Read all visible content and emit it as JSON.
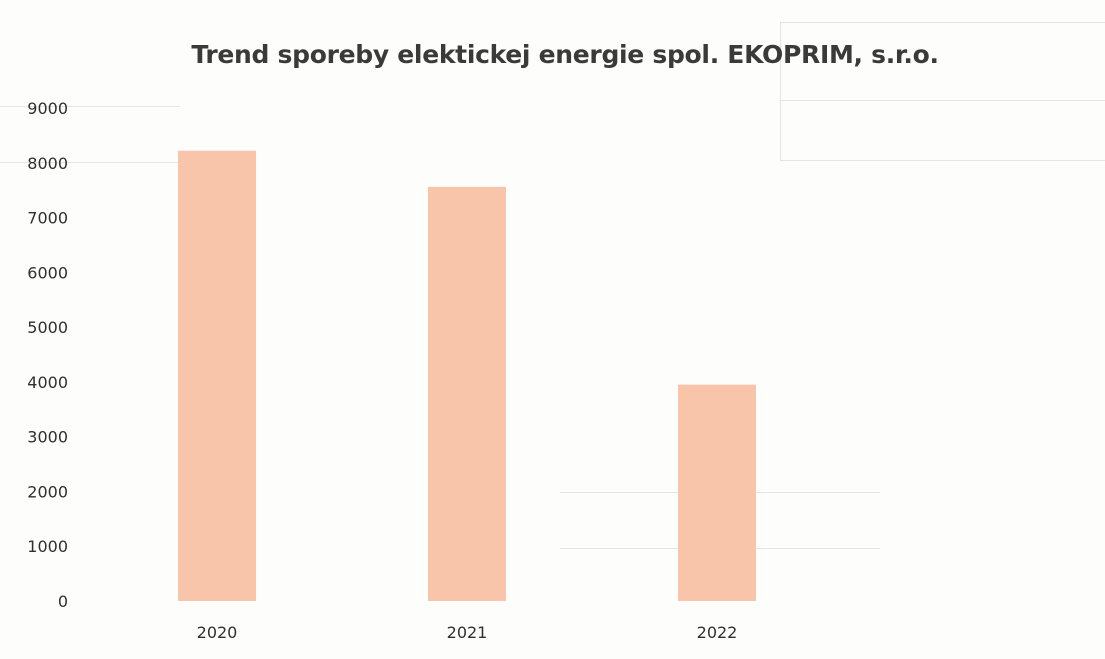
{
  "chart_data": {
    "type": "bar",
    "title": "Trend sporeby elektickej energie spol. EKOPRIM, s.r.o.",
    "categories": [
      "2020",
      "2021",
      "2022"
    ],
    "values": [
      8220,
      7560,
      3950
    ],
    "xlabel": "",
    "ylabel": "",
    "ylim": [
      0,
      9000
    ],
    "yticks": [
      0,
      1000,
      2000,
      3000,
      4000,
      5000,
      6000,
      7000,
      8000,
      9000
    ],
    "grid": false,
    "legend": "none",
    "bar_color": "#f8c5aa"
  }
}
